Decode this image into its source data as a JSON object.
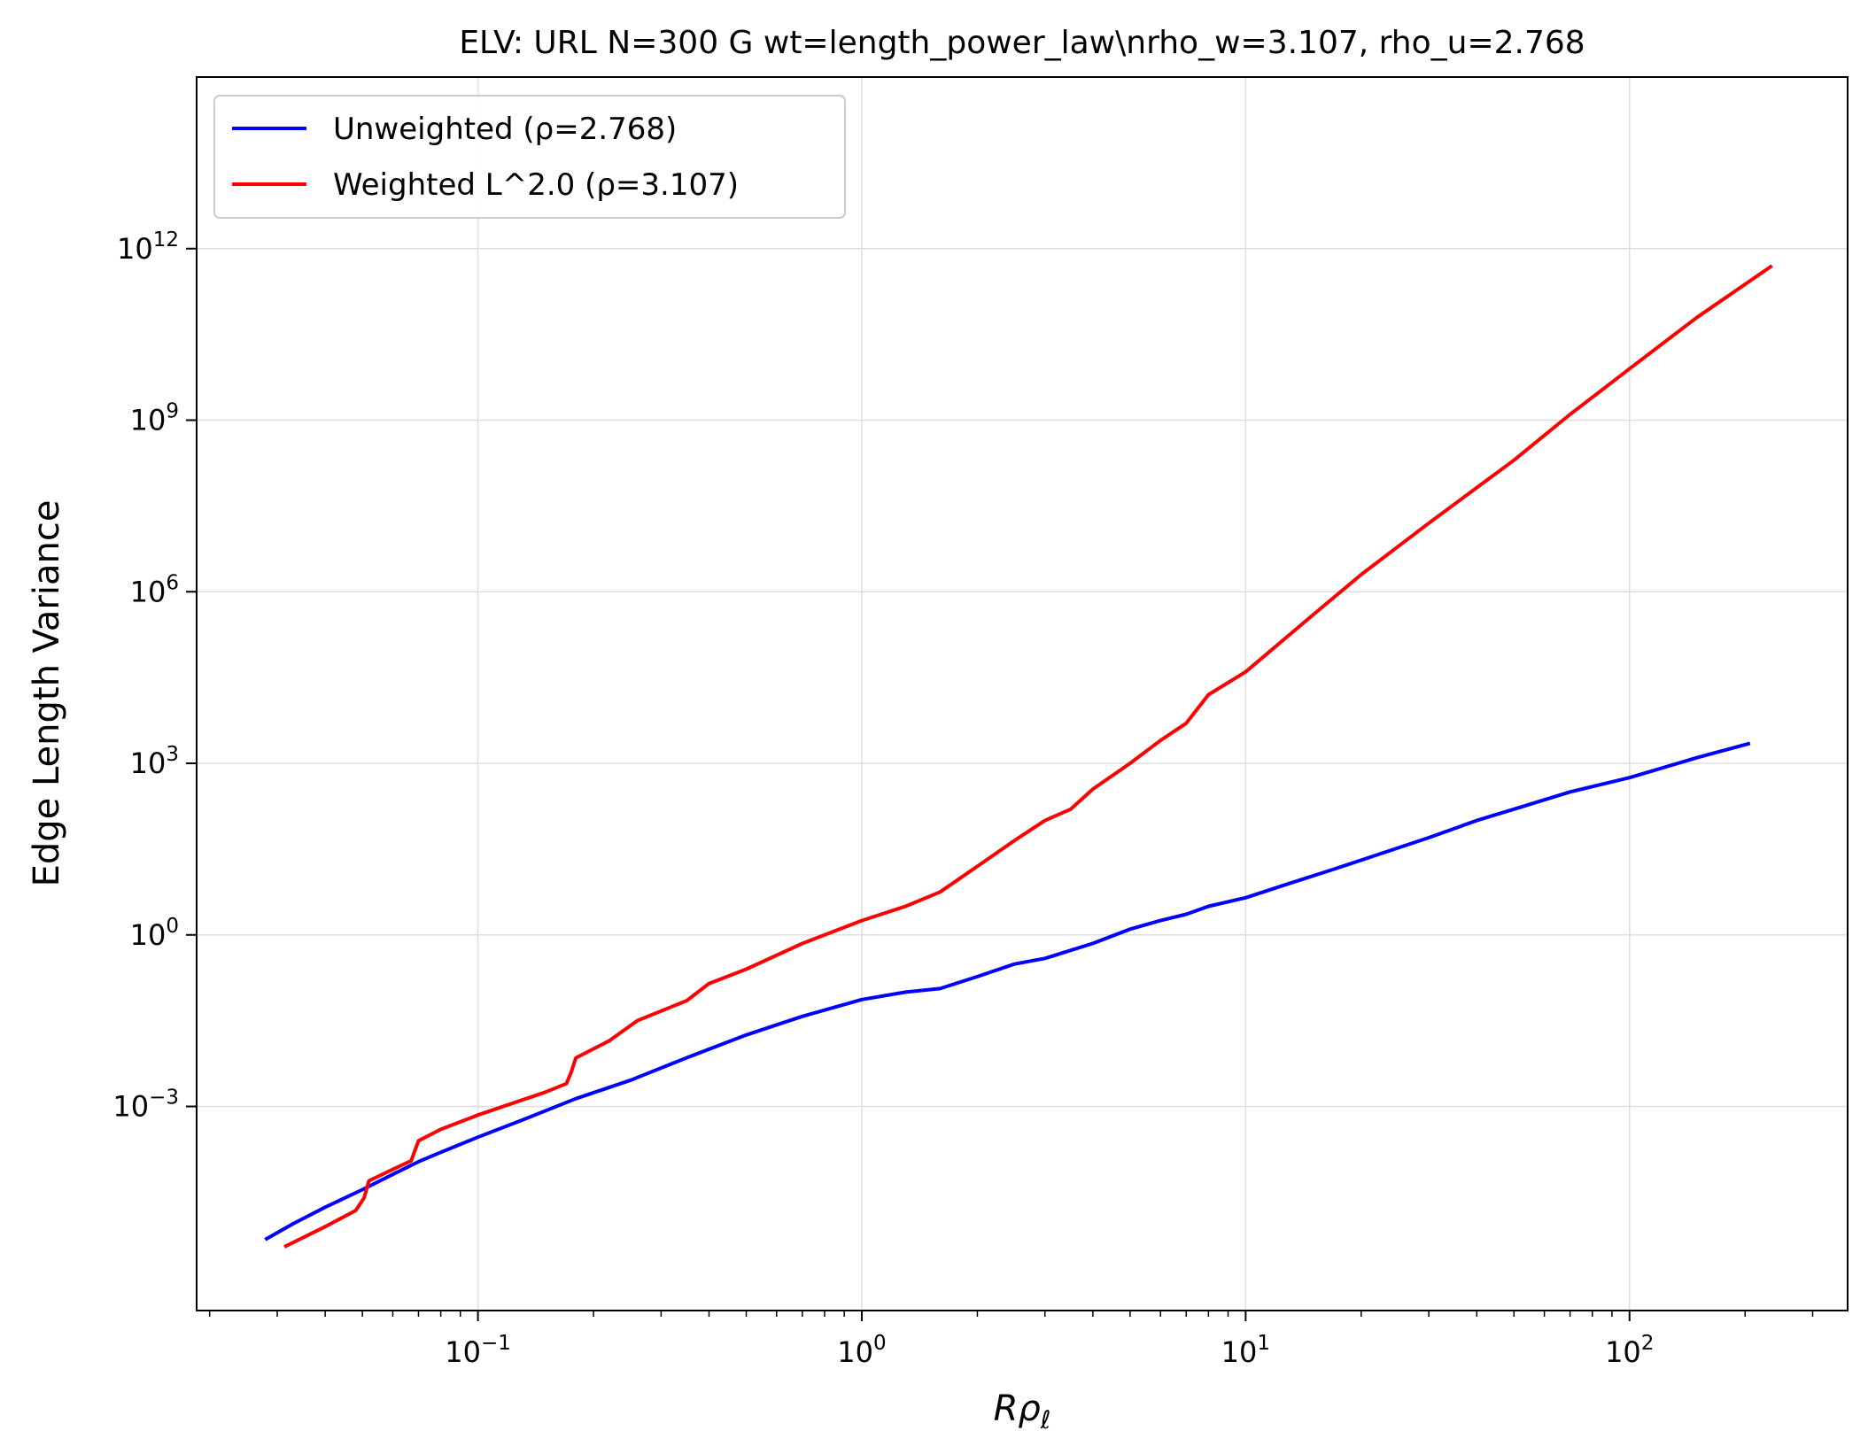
{
  "chart_data": {
    "type": "line",
    "title": "ELV: URL N=300 G wt=length_power_law\\nrho_w=3.107, rho_u=2.768",
    "xlabel": "R",
    "xlabel_symbol": "ρ",
    "xlabel_subscript": "ℓ",
    "ylabel": "Edge Length Variance",
    "xscale": "log",
    "yscale": "log",
    "xlim": [
      0.0185,
      370
    ],
    "ylim": [
      2.7e-07,
      1000000000000000.0
    ],
    "grid": true,
    "legend_position": "top-left",
    "x_ticks": [
      {
        "base": "10",
        "exp": "−1",
        "value": 0.1
      },
      {
        "base": "10",
        "exp": "0",
        "value": 1
      },
      {
        "base": "10",
        "exp": "1",
        "value": 10
      },
      {
        "base": "10",
        "exp": "2",
        "value": 100
      }
    ],
    "y_ticks": [
      {
        "base": "10",
        "exp": "−3",
        "value": 0.001
      },
      {
        "base": "10",
        "exp": "0",
        "value": 1
      },
      {
        "base": "10",
        "exp": "3",
        "value": 1000
      },
      {
        "base": "10",
        "exp": "6",
        "value": 1000000
      },
      {
        "base": "10",
        "exp": "9",
        "value": 1000000000
      },
      {
        "base": "10",
        "exp": "12",
        "value": 1000000000000
      }
    ],
    "series": [
      {
        "name": "Unweighted (ρ=2.768)",
        "color": "#0000ff",
        "points": [
          [
            0.0279,
            4.7e-06
          ],
          [
            0.033,
            8.9e-06
          ],
          [
            0.04,
            1.73e-05
          ],
          [
            0.05,
            3.51e-05
          ],
          [
            0.06,
            6.49e-05
          ],
          [
            0.07,
            0.000108
          ],
          [
            0.08,
            0.000158
          ],
          [
            0.1,
            0.00029
          ],
          [
            0.13,
            0.000574
          ],
          [
            0.18,
            0.00137
          ],
          [
            0.25,
            0.00289
          ],
          [
            0.35,
            0.0071
          ],
          [
            0.5,
            0.0178
          ],
          [
            0.7,
            0.0376
          ],
          [
            1.0,
            0.0741
          ],
          [
            1.3,
            0.1
          ],
          [
            1.6,
            0.115
          ],
          [
            2.0,
            0.186
          ],
          [
            2.5,
            0.309
          ],
          [
            3.0,
            0.389
          ],
          [
            4.0,
            0.71
          ],
          [
            5.0,
            1.26
          ],
          [
            6.0,
            1.78
          ],
          [
            7.0,
            2.29
          ],
          [
            8.0,
            3.16
          ],
          [
            10.0,
            4.47
          ],
          [
            13.0,
            7.94
          ],
          [
            17.0,
            14.1
          ],
          [
            22.0,
            25.1
          ],
          [
            30.0,
            50.1
          ],
          [
            40.0,
            100
          ],
          [
            50.0,
            158
          ],
          [
            70.0,
            316
          ],
          [
            100.0,
            562
          ],
          [
            150.0,
            1259
          ],
          [
            206.0,
            2239
          ]
        ]
      },
      {
        "name": "Weighted L^2.0 (ρ=3.107)",
        "color": "#ff0000",
        "points": [
          [
            0.0313,
            3.5e-06
          ],
          [
            0.04,
            7.9e-06
          ],
          [
            0.048,
            1.51e-05
          ],
          [
            0.0505,
            2.51e-05
          ],
          [
            0.052,
            5.01e-05
          ],
          [
            0.06,
            7.94e-05
          ],
          [
            0.067,
            0.000112
          ],
          [
            0.07,
            0.000251
          ],
          [
            0.08,
            0.000398
          ],
          [
            0.1,
            0.000708
          ],
          [
            0.15,
            0.00178
          ],
          [
            0.17,
            0.00251
          ],
          [
            0.175,
            0.00398
          ],
          [
            0.18,
            0.00708
          ],
          [
            0.22,
            0.0141
          ],
          [
            0.26,
            0.0316
          ],
          [
            0.35,
            0.0708
          ],
          [
            0.4,
            0.141
          ],
          [
            0.5,
            0.251
          ],
          [
            0.7,
            0.708
          ],
          [
            1.0,
            1.78
          ],
          [
            1.3,
            3.16
          ],
          [
            1.6,
            5.62
          ],
          [
            2.0,
            15.8
          ],
          [
            2.5,
            44.7
          ],
          [
            3.0,
            100
          ],
          [
            3.5,
            158
          ],
          [
            4.0,
            355
          ],
          [
            5.0,
            1000
          ],
          [
            6.0,
            2512
          ],
          [
            7.0,
            5012
          ],
          [
            8.0,
            15849
          ],
          [
            10.0,
            39811
          ],
          [
            15.0,
            398107
          ],
          [
            20.0,
            1995262
          ],
          [
            30.0,
            15848932
          ],
          [
            50.0,
            199526231
          ],
          [
            70.0,
            1258925412
          ],
          [
            100.0,
            7943282347
          ],
          [
            150.0,
            63095734448
          ],
          [
            235.0,
            501187233627
          ]
        ]
      }
    ]
  }
}
